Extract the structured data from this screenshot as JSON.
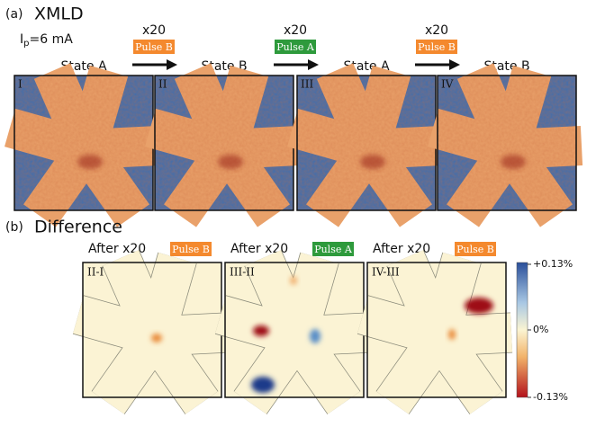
{
  "panel_a": {
    "label": "(a)",
    "title": "XMLD",
    "current": {
      "symbol": "I",
      "subscript": "p",
      "value": "=6 mA"
    },
    "states": [
      {
        "name": "State A",
        "roman": "I"
      },
      {
        "name": "State B",
        "roman": "II"
      },
      {
        "name": "State A",
        "roman": "III"
      },
      {
        "name": "State B",
        "roman": "IV"
      }
    ],
    "steps": [
      {
        "count": "x20",
        "pulse": "Pulse B",
        "color": "#f4892e"
      },
      {
        "count": "x20",
        "pulse": "Pulse A",
        "color": "#2e9a3c"
      },
      {
        "count": "x20",
        "pulse": "Pulse B",
        "color": "#f4892e"
      }
    ]
  },
  "panel_b": {
    "label": "(b)",
    "title": "Difference",
    "panels": [
      {
        "caption": "After x20",
        "pulse": "Pulse B",
        "color": "#f4892e",
        "label": "II-I"
      },
      {
        "caption": "After x20",
        "pulse": "Pulse A",
        "color": "#2e9a3c",
        "label": "III-II"
      },
      {
        "caption": "After x20",
        "pulse": "Pulse B",
        "color": "#f4892e",
        "label": "IV-III"
      }
    ],
    "colorbar": {
      "max": "+0.13%",
      "mid": "0%",
      "min": "-0.13%"
    }
  }
}
